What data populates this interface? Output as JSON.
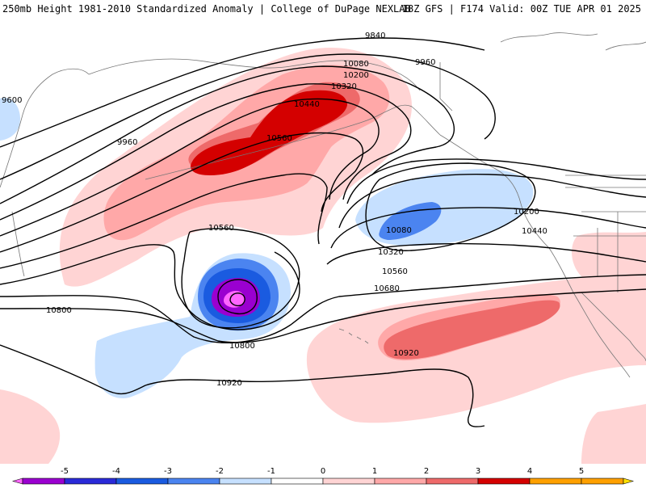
{
  "header": {
    "title_left": "250mb Height 1981-2010 Standardized Anomaly | College of DuPage NEXLAB",
    "title_right": "18Z GFS | F174 Valid: 00Z TUE APR 01 2025"
  },
  "map": {
    "contour_labels": [
      "9840",
      "9960",
      "9960",
      "9600",
      "10080",
      "10200",
      "10320",
      "10440",
      "10560",
      "10560",
      "10080",
      "10200",
      "10320",
      "10440",
      "10560",
      "10680",
      "10800",
      "10800",
      "10920",
      "10920"
    ]
  },
  "colorbar": {
    "ticks": [
      "-5",
      "-4",
      "-3",
      "-2",
      "-1",
      "0",
      "1",
      "2",
      "3",
      "4",
      "5"
    ],
    "colors": [
      "#ff66ff",
      "#9a00d0",
      "#2a2ad8",
      "#1a5be0",
      "#4b84f0",
      "#c6e0ff",
      "#ffffff",
      "#ffd4d4",
      "#ffa8a8",
      "#ee6a6a",
      "#d40000",
      "#ffa000",
      "#ffe000"
    ]
  }
}
